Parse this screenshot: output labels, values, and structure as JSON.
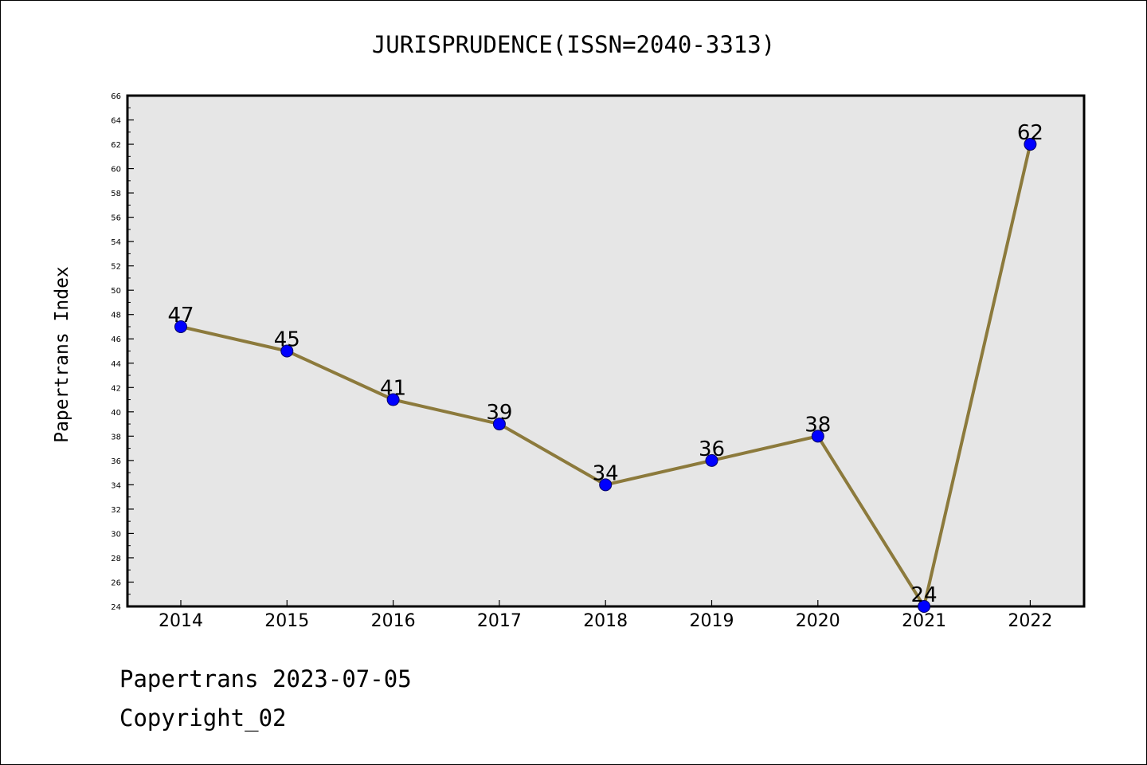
{
  "chart_data": {
    "type": "line",
    "title": "JURISPRUDENCE(ISSN=2040-3313)",
    "xlabel": "",
    "ylabel": "Papertrans Index",
    "categories": [
      "2014",
      "2015",
      "2016",
      "2017",
      "2018",
      "2019",
      "2020",
      "2021",
      "2022"
    ],
    "series": [
      {
        "values": [
          47,
          45,
          41,
          39,
          34,
          36,
          38,
          24,
          62
        ]
      }
    ],
    "data_labels": [
      "47",
      "45",
      "41",
      "39",
      "34",
      "36",
      "38",
      "24",
      "62"
    ],
    "ylim": [
      24,
      66
    ],
    "y_major_ticks": [
      "24",
      "26",
      "28",
      "30",
      "32",
      "34",
      "36",
      "38",
      "40",
      "42",
      "44",
      "46",
      "48",
      "50",
      "52",
      "54",
      "56",
      "58",
      "60",
      "62",
      "64",
      "66"
    ],
    "grid": false,
    "legend": "none",
    "colors": {
      "line": "#8c7a3c",
      "marker": "#0000ff",
      "marker_edge": "#000066",
      "plot_background": "#e6e6e6",
      "axis": "#000000"
    }
  },
  "footer": {
    "date_text": "Papertrans 2023-07-05",
    "copyright_text": "Copyright_02"
  }
}
